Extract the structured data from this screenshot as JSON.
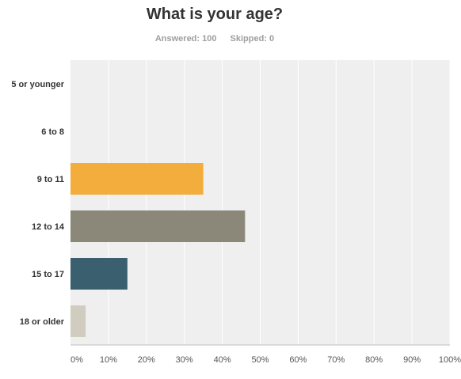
{
  "title": "What is your age?",
  "stats": {
    "answered": "Answered: 100",
    "skipped": "Skipped: 0"
  },
  "colors": {
    "plot_bg": "#efefef",
    "grid": "#ffffff",
    "axis": "#bdbdbd"
  },
  "chart_data": {
    "type": "bar",
    "orientation": "horizontal",
    "title": "What is your age?",
    "categories": [
      "5 or younger",
      "6 to 8",
      "9 to 11",
      "12 to 14",
      "15 to 17",
      "18 or older"
    ],
    "values": [
      0,
      0,
      35,
      46,
      15,
      4
    ],
    "colors": [
      "#f2ad3c",
      "#f2ad3c",
      "#f2ad3c",
      "#8b887a",
      "#3a5f6e",
      "#d1ccc0"
    ],
    "xlim": [
      0,
      100
    ],
    "x_ticks": [
      0,
      10,
      20,
      30,
      40,
      50,
      60,
      70,
      80,
      90,
      100
    ],
    "x_tick_labels": [
      "0%",
      "10%",
      "20%",
      "30%",
      "40%",
      "50%",
      "60%",
      "70%",
      "80%",
      "90%",
      "100%"
    ],
    "grid": true,
    "unit": "%"
  }
}
